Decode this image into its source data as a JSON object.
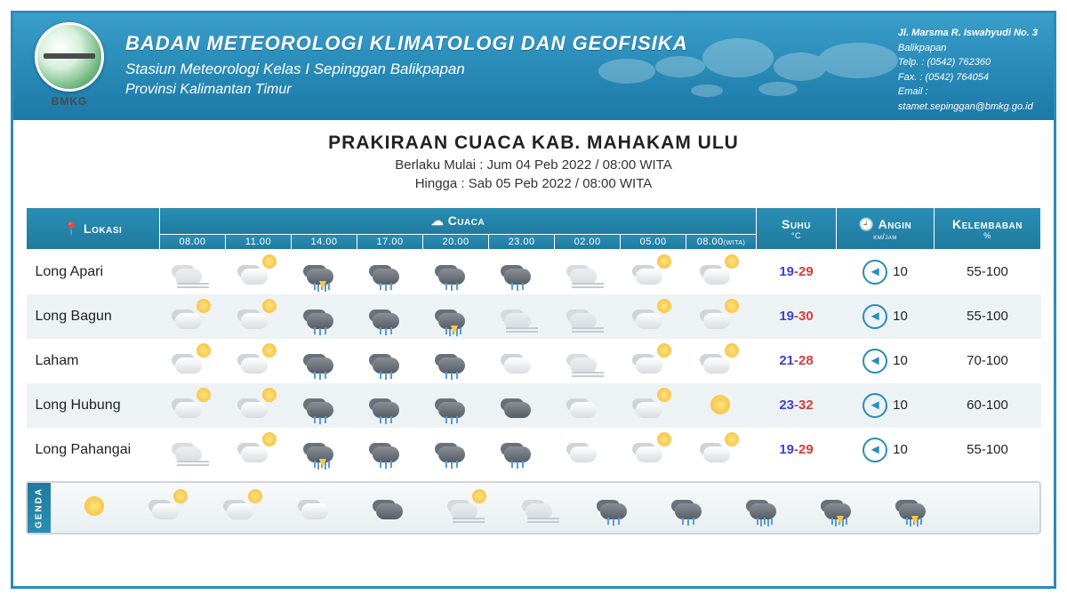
{
  "colors": {
    "header_gradient_top": "#3a9ecb",
    "header_gradient_bottom": "#1e7aa8",
    "border": "#2a8cb8",
    "row_alt": "#edf3f5",
    "temp_low": "#3b3fd8",
    "temp_high": "#d83b3b",
    "text": "#222222"
  },
  "header": {
    "logo_label": "BMKG",
    "org": "BADAN METEOROLOGI KLIMATOLOGI DAN GEOFISIKA",
    "station": "Stasiun Meteorologi Kelas I Sepinggan Balikpapan",
    "province": "Provinsi Kalimantan Timur",
    "contact": {
      "addr1": "Jl. Marsma R. Iswahyudi No. 3",
      "addr2": "Balikpapan",
      "phone": "Telp. : (0542) 762360",
      "fax": "Fax.  : (0542) 764054",
      "email_label": "Email :",
      "email": "stamet.sepinggan@bmkg.go.id"
    }
  },
  "title": {
    "main": "PRAKIRAAN CUACA KAB. MAHAKAM ULU",
    "valid_from_label": "Berlaku Mulai : ",
    "valid_from": "Jum 04 Peb 2022 / 08:00 WITA",
    "valid_to_label": "Hingga : ",
    "valid_to": "Sab 05 Peb 2022 / 08:00 WITA"
  },
  "table": {
    "th_lokasi": "Lokasi",
    "th_cuaca": "Cuaca",
    "th_suhu": "Suhu",
    "th_suhu_unit": "°C",
    "th_angin": "Angin",
    "th_angin_unit": "km/jam",
    "th_kelembaban": "Kelembaban",
    "th_kelembaban_unit": "%",
    "hours": [
      "08.00",
      "11.00",
      "14.00",
      "17.00",
      "20.00",
      "23.00",
      "02.00",
      "05.00",
      "08.00"
    ],
    "hours_note": "(WITA)",
    "rows": [
      {
        "lokasi": "Long Apari",
        "icons": [
          "fog",
          "partly",
          "storm",
          "rain",
          "rain",
          "rain",
          "fog",
          "partly",
          "partly"
        ],
        "temp_lo": "19",
        "temp_hi": "29",
        "wind": "10",
        "humid": "55-100"
      },
      {
        "lokasi": "Long Bagun",
        "icons": [
          "partly",
          "partly",
          "rain",
          "rain",
          "storm",
          "fog",
          "fog",
          "partly",
          "partly"
        ],
        "temp_lo": "19",
        "temp_hi": "30",
        "wind": "10",
        "humid": "55-100"
      },
      {
        "lokasi": "Laham",
        "icons": [
          "partly",
          "partly",
          "rain",
          "rain",
          "rain",
          "cloud",
          "fog",
          "partly",
          "partly"
        ],
        "temp_lo": "21",
        "temp_hi": "28",
        "wind": "10",
        "humid": "70-100"
      },
      {
        "lokasi": "Long Hubung",
        "icons": [
          "partly",
          "partly",
          "rain",
          "rain",
          "rain",
          "dark",
          "cloud",
          "partly",
          "sunny"
        ],
        "temp_lo": "23",
        "temp_hi": "32",
        "wind": "10",
        "humid": "60-100"
      },
      {
        "lokasi": "Long Pahangai",
        "icons": [
          "fog",
          "partly",
          "storm",
          "rain",
          "rain",
          "rain",
          "cloud",
          "partly",
          "partly"
        ],
        "temp_lo": "19",
        "temp_hi": "29",
        "wind": "10",
        "humid": "55-100"
      }
    ]
  },
  "legend": {
    "tab": "GENDA",
    "icons": [
      "sunny",
      "partly",
      "partly",
      "cloud",
      "dark",
      "haze",
      "fog",
      "rain",
      "rain",
      "heavy",
      "storm",
      "storm"
    ]
  }
}
